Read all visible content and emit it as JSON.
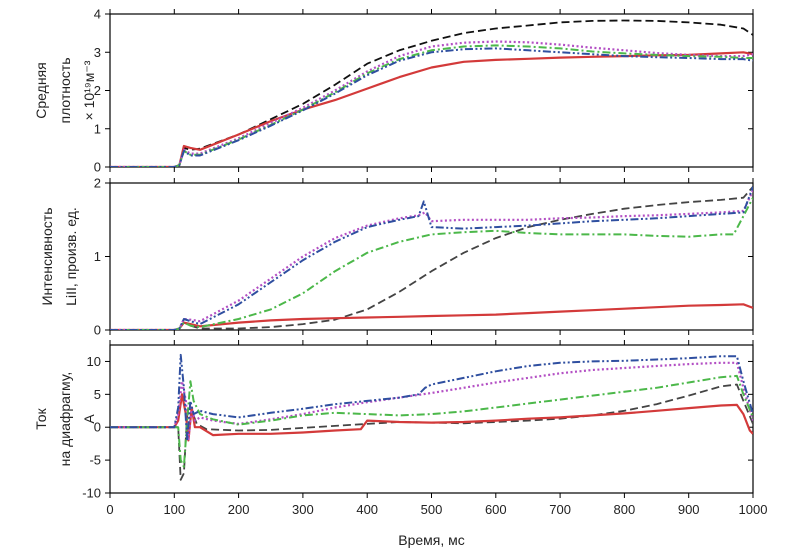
{
  "figure": {
    "xlabel": "Время, мс",
    "xlim": [
      0,
      1000
    ],
    "xticks": [
      0,
      100,
      200,
      300,
      400,
      500,
      600,
      700,
      800,
      900,
      1000
    ]
  },
  "chart_data": [
    {
      "type": "line",
      "ylabel_lines": [
        "Средняя",
        "плотность",
        "× 10¹⁹м⁻³"
      ],
      "ylim": [
        0,
        4
      ],
      "yticks": [
        0,
        1,
        2,
        3,
        4
      ],
      "series": [
        {
          "color": "#111111",
          "style": "dashed",
          "x": [
            0,
            100,
            108,
            115,
            125,
            140,
            200,
            250,
            300,
            350,
            400,
            450,
            500,
            550,
            600,
            650,
            700,
            750,
            800,
            850,
            900,
            950,
            985,
            1000
          ],
          "y": [
            0,
            0,
            0.05,
            0.5,
            0.45,
            0.48,
            0.85,
            1.25,
            1.65,
            2.15,
            2.7,
            3.05,
            3.3,
            3.5,
            3.62,
            3.7,
            3.78,
            3.82,
            3.83,
            3.82,
            3.78,
            3.72,
            3.62,
            3.45
          ]
        },
        {
          "color": "#d33a3a",
          "style": "solid",
          "x": [
            0,
            100,
            108,
            115,
            125,
            140,
            200,
            250,
            300,
            350,
            400,
            450,
            500,
            550,
            600,
            650,
            700,
            750,
            800,
            850,
            900,
            950,
            985,
            1000
          ],
          "y": [
            0,
            0,
            0.05,
            0.55,
            0.5,
            0.45,
            0.85,
            1.2,
            1.5,
            1.75,
            2.05,
            2.35,
            2.6,
            2.75,
            2.8,
            2.83,
            2.86,
            2.88,
            2.9,
            2.92,
            2.93,
            2.97,
            3.0,
            2.95
          ]
        },
        {
          "color": "#b34fc4",
          "style": "dotted",
          "x": [
            0,
            100,
            108,
            115,
            125,
            140,
            200,
            250,
            300,
            350,
            400,
            450,
            500,
            550,
            600,
            650,
            700,
            750,
            800,
            850,
            900,
            950,
            985,
            1000
          ],
          "y": [
            0,
            0,
            0.05,
            0.45,
            0.35,
            0.35,
            0.75,
            1.15,
            1.55,
            2.0,
            2.5,
            2.9,
            3.15,
            3.25,
            3.28,
            3.26,
            3.2,
            3.12,
            3.05,
            2.98,
            2.93,
            2.9,
            2.9,
            2.95
          ]
        },
        {
          "color": "#4cb84a",
          "style": "dashdot",
          "x": [
            0,
            100,
            108,
            115,
            125,
            140,
            200,
            250,
            300,
            350,
            400,
            450,
            500,
            550,
            600,
            650,
            700,
            750,
            800,
            850,
            900,
            950,
            985,
            1000
          ],
          "y": [
            0,
            0,
            0.05,
            0.42,
            0.32,
            0.32,
            0.72,
            1.1,
            1.5,
            1.95,
            2.45,
            2.82,
            3.05,
            3.15,
            3.18,
            3.15,
            3.1,
            3.02,
            2.97,
            2.93,
            2.9,
            2.88,
            2.85,
            2.85
          ]
        },
        {
          "color": "#2f4fa0",
          "style": "dashdotdot",
          "x": [
            0,
            100,
            108,
            115,
            125,
            140,
            200,
            250,
            300,
            350,
            400,
            450,
            500,
            550,
            600,
            650,
            700,
            750,
            800,
            850,
            900,
            950,
            985,
            1000
          ],
          "y": [
            0,
            0,
            0.05,
            0.42,
            0.3,
            0.3,
            0.7,
            1.08,
            1.48,
            1.92,
            2.4,
            2.78,
            3.0,
            3.08,
            3.1,
            3.05,
            3.0,
            2.95,
            2.9,
            2.87,
            2.85,
            2.82,
            2.82,
            2.78
          ]
        }
      ]
    },
    {
      "type": "line",
      "ylabel_lines": [
        "Интенсивность",
        "LiII, произв. ед."
      ],
      "ylim": [
        0,
        2
      ],
      "yticks": [
        0,
        1,
        2
      ],
      "series": [
        {
          "color": "#444444",
          "style": "dashed",
          "x": [
            0,
            100,
            108,
            115,
            125,
            140,
            200,
            250,
            300,
            350,
            400,
            450,
            500,
            550,
            600,
            650,
            700,
            750,
            800,
            850,
            900,
            950,
            985,
            1000
          ],
          "y": [
            0,
            0,
            0.02,
            0.1,
            0.06,
            0.02,
            0.02,
            0.04,
            0.08,
            0.14,
            0.28,
            0.52,
            0.8,
            1.05,
            1.25,
            1.4,
            1.5,
            1.58,
            1.65,
            1.7,
            1.74,
            1.77,
            1.8,
            1.95
          ]
        },
        {
          "color": "#d33a3a",
          "style": "solid",
          "x": [
            0,
            100,
            108,
            115,
            125,
            140,
            200,
            250,
            300,
            350,
            400,
            450,
            500,
            550,
            600,
            650,
            700,
            750,
            800,
            850,
            900,
            950,
            985,
            1000
          ],
          "y": [
            0,
            0,
            0.02,
            0.1,
            0.08,
            0.05,
            0.1,
            0.13,
            0.15,
            0.16,
            0.17,
            0.18,
            0.19,
            0.2,
            0.21,
            0.23,
            0.25,
            0.27,
            0.29,
            0.31,
            0.33,
            0.34,
            0.35,
            0.3
          ]
        },
        {
          "color": "#b34fc4",
          "style": "dotted",
          "x": [
            0,
            100,
            108,
            115,
            125,
            140,
            200,
            250,
            300,
            350,
            400,
            450,
            480,
            490,
            500,
            550,
            600,
            650,
            700,
            750,
            800,
            850,
            900,
            950,
            985,
            1000
          ],
          "y": [
            0,
            0,
            0.02,
            0.15,
            0.14,
            0.12,
            0.4,
            0.7,
            1.0,
            1.25,
            1.42,
            1.52,
            1.56,
            1.6,
            1.48,
            1.5,
            1.5,
            1.5,
            1.52,
            1.53,
            1.55,
            1.56,
            1.58,
            1.6,
            1.62,
            1.9
          ]
        },
        {
          "color": "#4cb84a",
          "style": "dashdot",
          "x": [
            0,
            100,
            108,
            115,
            125,
            140,
            200,
            250,
            300,
            350,
            400,
            450,
            500,
            550,
            600,
            650,
            700,
            750,
            800,
            850,
            900,
            950,
            970,
            985,
            1000
          ],
          "y": [
            0,
            0,
            0.02,
            0.1,
            0.06,
            0.04,
            0.15,
            0.28,
            0.5,
            0.8,
            1.05,
            1.2,
            1.3,
            1.33,
            1.35,
            1.32,
            1.3,
            1.3,
            1.3,
            1.28,
            1.27,
            1.3,
            1.3,
            1.55,
            1.8
          ]
        },
        {
          "color": "#2f4fa0",
          "style": "dashdotdot",
          "x": [
            0,
            100,
            108,
            115,
            125,
            140,
            200,
            250,
            300,
            350,
            400,
            450,
            480,
            488,
            500,
            550,
            600,
            650,
            700,
            750,
            800,
            850,
            900,
            950,
            985,
            1000
          ],
          "y": [
            0,
            0,
            0.02,
            0.15,
            0.12,
            0.08,
            0.35,
            0.65,
            0.95,
            1.2,
            1.4,
            1.5,
            1.55,
            1.75,
            1.4,
            1.38,
            1.4,
            1.42,
            1.45,
            1.48,
            1.5,
            1.52,
            1.55,
            1.58,
            1.6,
            1.95
          ]
        }
      ]
    },
    {
      "type": "line",
      "ylabel_lines": [
        "Ток",
        "на диафрагму,",
        "А"
      ],
      "ylim": [
        -10,
        12.5
      ],
      "yticks": [
        -10,
        -5,
        0,
        5,
        10
      ],
      "series": [
        {
          "color": "#444444",
          "style": "dashed",
          "x": [
            0,
            100,
            106,
            110,
            115,
            120,
            125,
            135,
            150,
            200,
            250,
            300,
            350,
            400,
            450,
            500,
            550,
            600,
            650,
            700,
            750,
            800,
            850,
            900,
            950,
            975,
            985,
            1000
          ],
          "y": [
            0,
            0,
            0,
            -8,
            -7,
            2,
            3,
            0.5,
            -0.3,
            -0.5,
            -0.4,
            -0.1,
            0.2,
            0.5,
            0.8,
            0.7,
            0.6,
            0.8,
            1.0,
            1.3,
            1.8,
            2.5,
            3.5,
            4.8,
            6.2,
            6.5,
            4.0,
            0.5
          ]
        },
        {
          "color": "#d33a3a",
          "style": "solid",
          "x": [
            0,
            100,
            106,
            112,
            118,
            122,
            127,
            132,
            140,
            160,
            200,
            250,
            300,
            350,
            390,
            400,
            450,
            500,
            550,
            600,
            650,
            700,
            750,
            800,
            850,
            900,
            950,
            975,
            985,
            995,
            1000
          ],
          "y": [
            0,
            0,
            1,
            5,
            2,
            -2,
            3,
            0,
            0,
            -1.2,
            -1.0,
            -1.0,
            -0.8,
            -0.5,
            -0.3,
            1.0,
            0.8,
            0.7,
            0.8,
            1.0,
            1.3,
            1.5,
            1.8,
            2.1,
            2.5,
            2.9,
            3.3,
            3.4,
            2.0,
            -0.5,
            -1.0
          ]
        },
        {
          "color": "#b34fc4",
          "style": "dotted",
          "x": [
            0,
            100,
            106,
            112,
            118,
            122,
            127,
            132,
            140,
            160,
            200,
            250,
            300,
            350,
            400,
            450,
            500,
            550,
            600,
            650,
            700,
            750,
            800,
            850,
            900,
            950,
            975,
            985,
            1000
          ],
          "y": [
            0,
            0,
            2,
            7,
            4,
            -2,
            3,
            1,
            1.5,
            1.0,
            0.5,
            1.2,
            2.0,
            3.0,
            3.8,
            4.5,
            5.2,
            6.0,
            6.8,
            7.5,
            8.2,
            8.7,
            9.0,
            9.3,
            9.6,
            9.8,
            9.8,
            6.0,
            1.0
          ]
        },
        {
          "color": "#4cb84a",
          "style": "dashdot",
          "x": [
            0,
            100,
            106,
            110,
            115,
            120,
            125,
            130,
            140,
            160,
            200,
            250,
            300,
            350,
            400,
            450,
            500,
            550,
            600,
            650,
            700,
            750,
            800,
            850,
            900,
            950,
            975,
            985,
            1000
          ],
          "y": [
            0,
            0,
            0,
            -5,
            -6,
            1,
            7,
            4,
            2,
            1.2,
            0.4,
            1.0,
            1.8,
            2.2,
            2.0,
            1.8,
            2.0,
            2.4,
            3.0,
            3.6,
            4.2,
            4.8,
            5.4,
            6.0,
            6.8,
            7.6,
            7.8,
            5.0,
            1.5
          ]
        },
        {
          "color": "#2f4fa0",
          "style": "dashdotdot",
          "x": [
            0,
            100,
            106,
            110,
            115,
            120,
            125,
            130,
            140,
            160,
            200,
            250,
            300,
            350,
            400,
            450,
            480,
            490,
            500,
            550,
            600,
            650,
            700,
            750,
            800,
            850,
            900,
            950,
            975,
            985,
            1000
          ],
          "y": [
            0,
            0,
            3,
            11,
            6,
            -2,
            4,
            2,
            2.5,
            2.0,
            1.5,
            2.2,
            2.8,
            3.5,
            4.0,
            4.5,
            5.0,
            6.0,
            6.5,
            7.5,
            8.5,
            9.3,
            9.8,
            10.0,
            10.1,
            10.3,
            10.5,
            10.8,
            10.8,
            7.0,
            2.0
          ]
        }
      ]
    }
  ]
}
